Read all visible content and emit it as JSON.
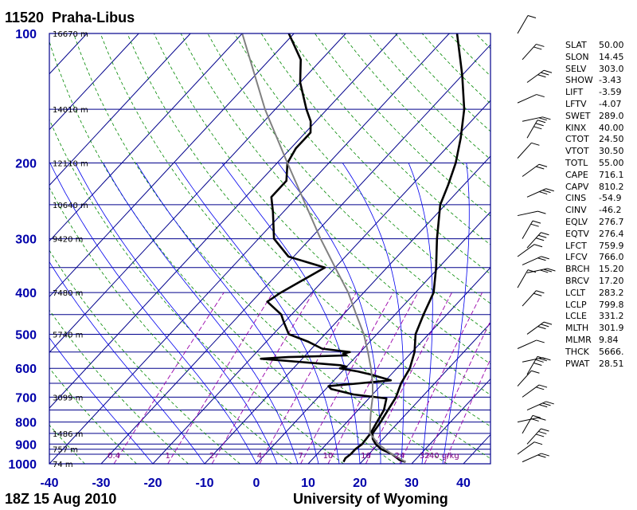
{
  "header": {
    "station_id": "11520",
    "station_name": "Praha-Libus"
  },
  "footer": {
    "timestamp": "18Z 15 Aug 2010",
    "credit": "University of Wyoming"
  },
  "colors": {
    "isobar": "#00008b",
    "isotherm": "#00008b",
    "dry_adiabat": "#008800",
    "moist_adiabat": "#0000ee",
    "mixing_ratio": "#9900aa",
    "sounding": "#000000",
    "parcel": "#808080",
    "axis_label": "#0000aa",
    "mixing_label": "#800080"
  },
  "chart_data": {
    "type": "line",
    "subtype": "skew-t log-p",
    "x_axis": {
      "label": "",
      "range": [
        -40,
        45
      ],
      "ticks": [
        "-40",
        "-30",
        "-20",
        "-10",
        "0",
        "10",
        "20",
        "30",
        "40"
      ]
    },
    "y_axis": {
      "label": "",
      "scale": "log",
      "range": [
        1000,
        100
      ],
      "ticks": [
        "100",
        "200",
        "300",
        "400",
        "500",
        "600",
        "700",
        "800",
        "900",
        "1000"
      ]
    },
    "height_labels": [
      {
        "p": 100,
        "text": "16670 m"
      },
      {
        "p": 150,
        "text": "14010 m"
      },
      {
        "p": 200,
        "text": "12110 m"
      },
      {
        "p": 250,
        "text": "10640 m"
      },
      {
        "p": 300,
        "text": "9420 m"
      },
      {
        "p": 400,
        "text": "7480 m"
      },
      {
        "p": 500,
        "text": "5740 m"
      },
      {
        "p": 700,
        "text": "3099 m"
      },
      {
        "p": 850,
        "text": "1486 m"
      },
      {
        "p": 925,
        "text": "757 m"
      },
      {
        "p": 1000,
        "text": "74 m"
      }
    ],
    "mixing_ratio_labels": [
      "0.4",
      "1",
      "2",
      "4",
      "7",
      "10",
      "16",
      "24",
      "32",
      "40 g/kg"
    ],
    "series": [
      {
        "name": "",
        "values": [
          [
            990,
            28.5
          ],
          [
            980,
            27
          ],
          [
            950,
            24.5
          ],
          [
            925,
            21.5
          ],
          [
            900,
            19.5
          ],
          [
            875,
            18
          ],
          [
            850,
            17
          ],
          [
            800,
            16.5
          ],
          [
            700,
            15
          ],
          [
            650,
            13.5
          ],
          [
            600,
            12.5
          ],
          [
            550,
            10.5
          ],
          [
            500,
            7.5
          ],
          [
            450,
            5.5
          ],
          [
            400,
            3.5
          ],
          [
            350,
            -0.5
          ],
          [
            300,
            -5.5
          ],
          [
            250,
            -11
          ],
          [
            225,
            -13
          ],
          [
            200,
            -15.5
          ],
          [
            175,
            -19
          ],
          [
            150,
            -23.5
          ],
          [
            125,
            -30
          ],
          [
            100,
            -38.5
          ]
        ]
      },
      {
        "name": "",
        "values": [
          [
            990,
            16.5
          ],
          [
            970,
            16.2
          ],
          [
            950,
            16.5
          ],
          [
            925,
            16.5
          ],
          [
            900,
            16.9
          ],
          [
            850,
            16.6
          ],
          [
            800,
            15.8
          ],
          [
            750,
            15
          ],
          [
            705,
            13.4
          ],
          [
            690,
            6.3
          ],
          [
            670,
            1
          ],
          [
            660,
            0
          ],
          [
            650,
            5.5
          ],
          [
            640,
            11
          ],
          [
            620,
            6
          ],
          [
            610,
            3
          ],
          [
            600,
            -1
          ],
          [
            595,
            0
          ],
          [
            590,
            -1.5
          ],
          [
            570,
            -18
          ],
          [
            565,
            -13
          ],
          [
            560,
            -2
          ],
          [
            555,
            -3
          ],
          [
            550,
            -2
          ],
          [
            540,
            -8
          ],
          [
            520,
            -12
          ],
          [
            500,
            -17
          ],
          [
            470,
            -20
          ],
          [
            450,
            -22
          ],
          [
            420,
            -27
          ],
          [
            400,
            -26
          ],
          [
            350,
            -22
          ],
          [
            330,
            -31
          ],
          [
            300,
            -37
          ],
          [
            260,
            -42
          ],
          [
            240,
            -45
          ],
          [
            220,
            -45
          ],
          [
            200,
            -48
          ],
          [
            185,
            -49
          ],
          [
            170,
            -49
          ],
          [
            160,
            -51
          ],
          [
            150,
            -54
          ],
          [
            130,
            -60
          ],
          [
            115,
            -64
          ],
          [
            100,
            -71
          ]
        ]
      },
      {
        "name": "",
        "values": [
          [
            990,
            28.5
          ],
          [
            950,
            24.5
          ],
          [
            900,
            20
          ],
          [
            850,
            16.5
          ],
          [
            800,
            14.5
          ],
          [
            750,
            12.5
          ],
          [
            700,
            10.5
          ],
          [
            650,
            8
          ],
          [
            600,
            5
          ],
          [
            550,
            1.5
          ],
          [
            500,
            -2.5
          ],
          [
            450,
            -7.5
          ],
          [
            400,
            -13
          ],
          [
            350,
            -20
          ],
          [
            300,
            -28
          ],
          [
            250,
            -37
          ],
          [
            200,
            -48
          ],
          [
            150,
            -62
          ],
          [
            100,
            -80
          ]
        ]
      }
    ],
    "wind_barbs": [
      {
        "p": 100
      },
      {
        "p": 115
      },
      {
        "p": 130
      },
      {
        "p": 145
      },
      {
        "p": 160
      },
      {
        "p": 175
      },
      {
        "p": 195
      },
      {
        "p": 215
      },
      {
        "p": 240
      },
      {
        "p": 265
      },
      {
        "p": 300
      },
      {
        "p": 315
      },
      {
        "p": 330
      },
      {
        "p": 345
      },
      {
        "p": 360
      },
      {
        "p": 390
      },
      {
        "p": 430
      },
      {
        "p": 500
      },
      {
        "p": 540
      },
      {
        "p": 580
      },
      {
        "p": 620
      },
      {
        "p": 660
      },
      {
        "p": 700
      },
      {
        "p": 750
      },
      {
        "p": 800
      },
      {
        "p": 850
      },
      {
        "p": 900
      },
      {
        "p": 950
      },
      {
        "p": 990
      }
    ]
  },
  "indices": [
    {
      "k": "SLAT",
      "v": "50.00"
    },
    {
      "k": "SLON",
      "v": "14.45"
    },
    {
      "k": "SELV",
      "v": "303.0"
    },
    {
      "k": "SHOW",
      "v": "-3.43"
    },
    {
      "k": "LIFT",
      "v": "-3.59"
    },
    {
      "k": "LFTV",
      "v": "-4.07"
    },
    {
      "k": "SWET",
      "v": "289.0"
    },
    {
      "k": "KINX",
      "v": "40.00"
    },
    {
      "k": "CTOT",
      "v": "24.50"
    },
    {
      "k": "VTOT",
      "v": "30.50"
    },
    {
      "k": "TOTL",
      "v": "55.00"
    },
    {
      "k": "CAPE",
      "v": "716.1"
    },
    {
      "k": "CAPV",
      "v": "810.2"
    },
    {
      "k": "CINS",
      "v": "-54.9"
    },
    {
      "k": "CINV",
      "v": "-46.2"
    },
    {
      "k": "EQLV",
      "v": "276.7"
    },
    {
      "k": "EQTV",
      "v": "276.4"
    },
    {
      "k": "LFCT",
      "v": "759.9"
    },
    {
      "k": "LFCV",
      "v": "766.0"
    },
    {
      "k": "BRCH",
      "v": "15.20"
    },
    {
      "k": "BRCV",
      "v": "17.20"
    },
    {
      "k": "LCLT",
      "v": "283.2"
    },
    {
      "k": "LCLP",
      "v": "799.8"
    },
    {
      "k": "LCLE",
      "v": "331.2"
    },
    {
      "k": "MLTH",
      "v": "301.9"
    },
    {
      "k": "MLMR",
      "v": "9.84"
    },
    {
      "k": "THCK",
      "v": "5666."
    },
    {
      "k": "PWAT",
      "v": "28.51"
    }
  ]
}
